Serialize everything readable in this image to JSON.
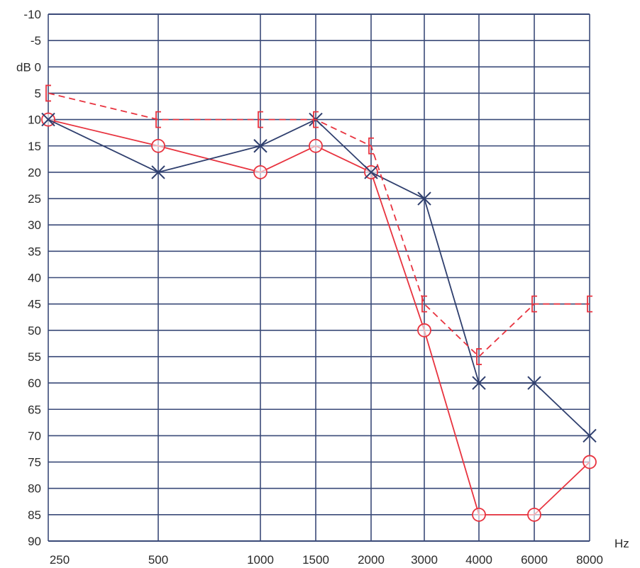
{
  "chart_data": {
    "type": "line",
    "subtype": "audiogram",
    "title": "",
    "x_axis": {
      "scale": "categorical-frequency",
      "categories": [
        "250",
        "500",
        "1000",
        "1500",
        "2000",
        "3000",
        "4000",
        "6000",
        "8000"
      ],
      "values": [
        250,
        500,
        1000,
        1500,
        2000,
        3000,
        4000,
        6000,
        8000
      ],
      "unit_label": "Hz"
    },
    "y_axis": {
      "range": [
        -10,
        90
      ],
      "inverted": true,
      "step": 5,
      "ticks": [
        -10,
        -5,
        0,
        5,
        10,
        15,
        20,
        25,
        30,
        35,
        40,
        45,
        50,
        55,
        60,
        65,
        70,
        75,
        80,
        85,
        90
      ],
      "tick_labels": [
        "-10",
        "-5",
        "dB 0",
        "5",
        "10",
        "15",
        "20",
        "25",
        "30",
        "35",
        "40",
        "45",
        "50",
        "55",
        "60",
        "65",
        "70",
        "75",
        "80",
        "85",
        "90"
      ]
    },
    "grid": true,
    "legend": "none",
    "series": [
      {
        "marker": "circle",
        "color": "#e8333f",
        "line": "solid",
        "points": [
          {
            "x": 250,
            "y": 10
          },
          {
            "x": 500,
            "y": 15
          },
          {
            "x": 1000,
            "y": 20
          },
          {
            "x": 1500,
            "y": 15
          },
          {
            "x": 2000,
            "y": 20
          },
          {
            "x": 3000,
            "y": 50
          },
          {
            "x": 4000,
            "y": 85
          },
          {
            "x": 6000,
            "y": 85
          },
          {
            "x": 8000,
            "y": 75
          }
        ]
      },
      {
        "marker": "cross",
        "color": "#2f3f6e",
        "line": "solid",
        "points": [
          {
            "x": 250,
            "y": 10
          },
          {
            "x": 500,
            "y": 20
          },
          {
            "x": 1000,
            "y": 15
          },
          {
            "x": 1500,
            "y": 10
          },
          {
            "x": 2000,
            "y": 20
          },
          {
            "x": 3000,
            "y": 25
          },
          {
            "x": 4000,
            "y": 60
          },
          {
            "x": 6000,
            "y": 60
          },
          {
            "x": 8000,
            "y": 70
          }
        ]
      },
      {
        "marker": "bracket",
        "color": "#e8333f",
        "line": "dashed",
        "points": [
          {
            "x": 250,
            "y": 5
          },
          {
            "x": 500,
            "y": 10
          },
          {
            "x": 1000,
            "y": 10
          },
          {
            "x": 1500,
            "y": 10
          },
          {
            "x": 2000,
            "y": 15
          },
          {
            "x": 3000,
            "y": 45
          },
          {
            "x": 4000,
            "y": 55
          },
          {
            "x": 6000,
            "y": 45
          },
          {
            "x": 8000,
            "y": 45
          }
        ]
      }
    ]
  }
}
